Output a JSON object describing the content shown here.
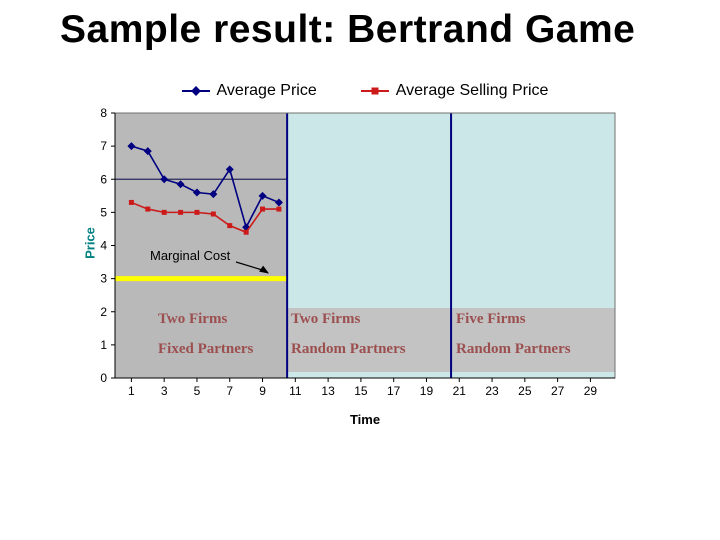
{
  "title": "Sample result: Bertrand Game",
  "chart_data": {
    "type": "line",
    "title": "",
    "xlabel": "Time",
    "ylabel": "Price",
    "ylim": [
      0,
      8
    ],
    "xlim": [
      0,
      30.5
    ],
    "y_ticks": [
      0,
      1,
      2,
      3,
      4,
      5,
      6,
      7,
      8
    ],
    "x_ticks": [
      1,
      3,
      5,
      7,
      9,
      11,
      13,
      15,
      17,
      19,
      21,
      23,
      25,
      27,
      29
    ],
    "x": [
      1,
      2,
      3,
      4,
      5,
      6,
      7,
      8,
      9,
      10
    ],
    "series": [
      {
        "name": "Average Price",
        "color": "#000080",
        "marker": "diamond",
        "values": [
          7.0,
          6.85,
          6.0,
          5.85,
          5.6,
          5.55,
          6.3,
          4.55,
          5.5,
          5.3
        ]
      },
      {
        "name": "Average Selling Price",
        "color": "#cc1a1a",
        "marker": "square",
        "values": [
          5.3,
          5.1,
          5.0,
          5.0,
          5.0,
          4.95,
          4.6,
          4.4,
          5.1,
          5.1
        ]
      }
    ],
    "reference_line_y": 6,
    "marginal_cost": {
      "label": "Marginal Cost",
      "value": 3,
      "color": "#ffff00"
    },
    "region_boundaries": [
      10.5,
      20.5
    ],
    "regions": [
      {
        "line1": "Two Firms",
        "line2": "Fixed Partners"
      },
      {
        "line1": "Two Firms",
        "line2": "Random Partners"
      },
      {
        "line1": "Five Firms",
        "line2": "Random Partners"
      }
    ],
    "legend_position": "top",
    "grid": false,
    "colors": {
      "region1_bg": "#b9b9b9",
      "region23_bg": "#cbe7e7",
      "band_bg": "#c3c3c3",
      "region_label_color": "#9c4f4f",
      "boundary_line": "#000080",
      "axis_color": "#000000",
      "ylabel_color": "#008080"
    }
  }
}
